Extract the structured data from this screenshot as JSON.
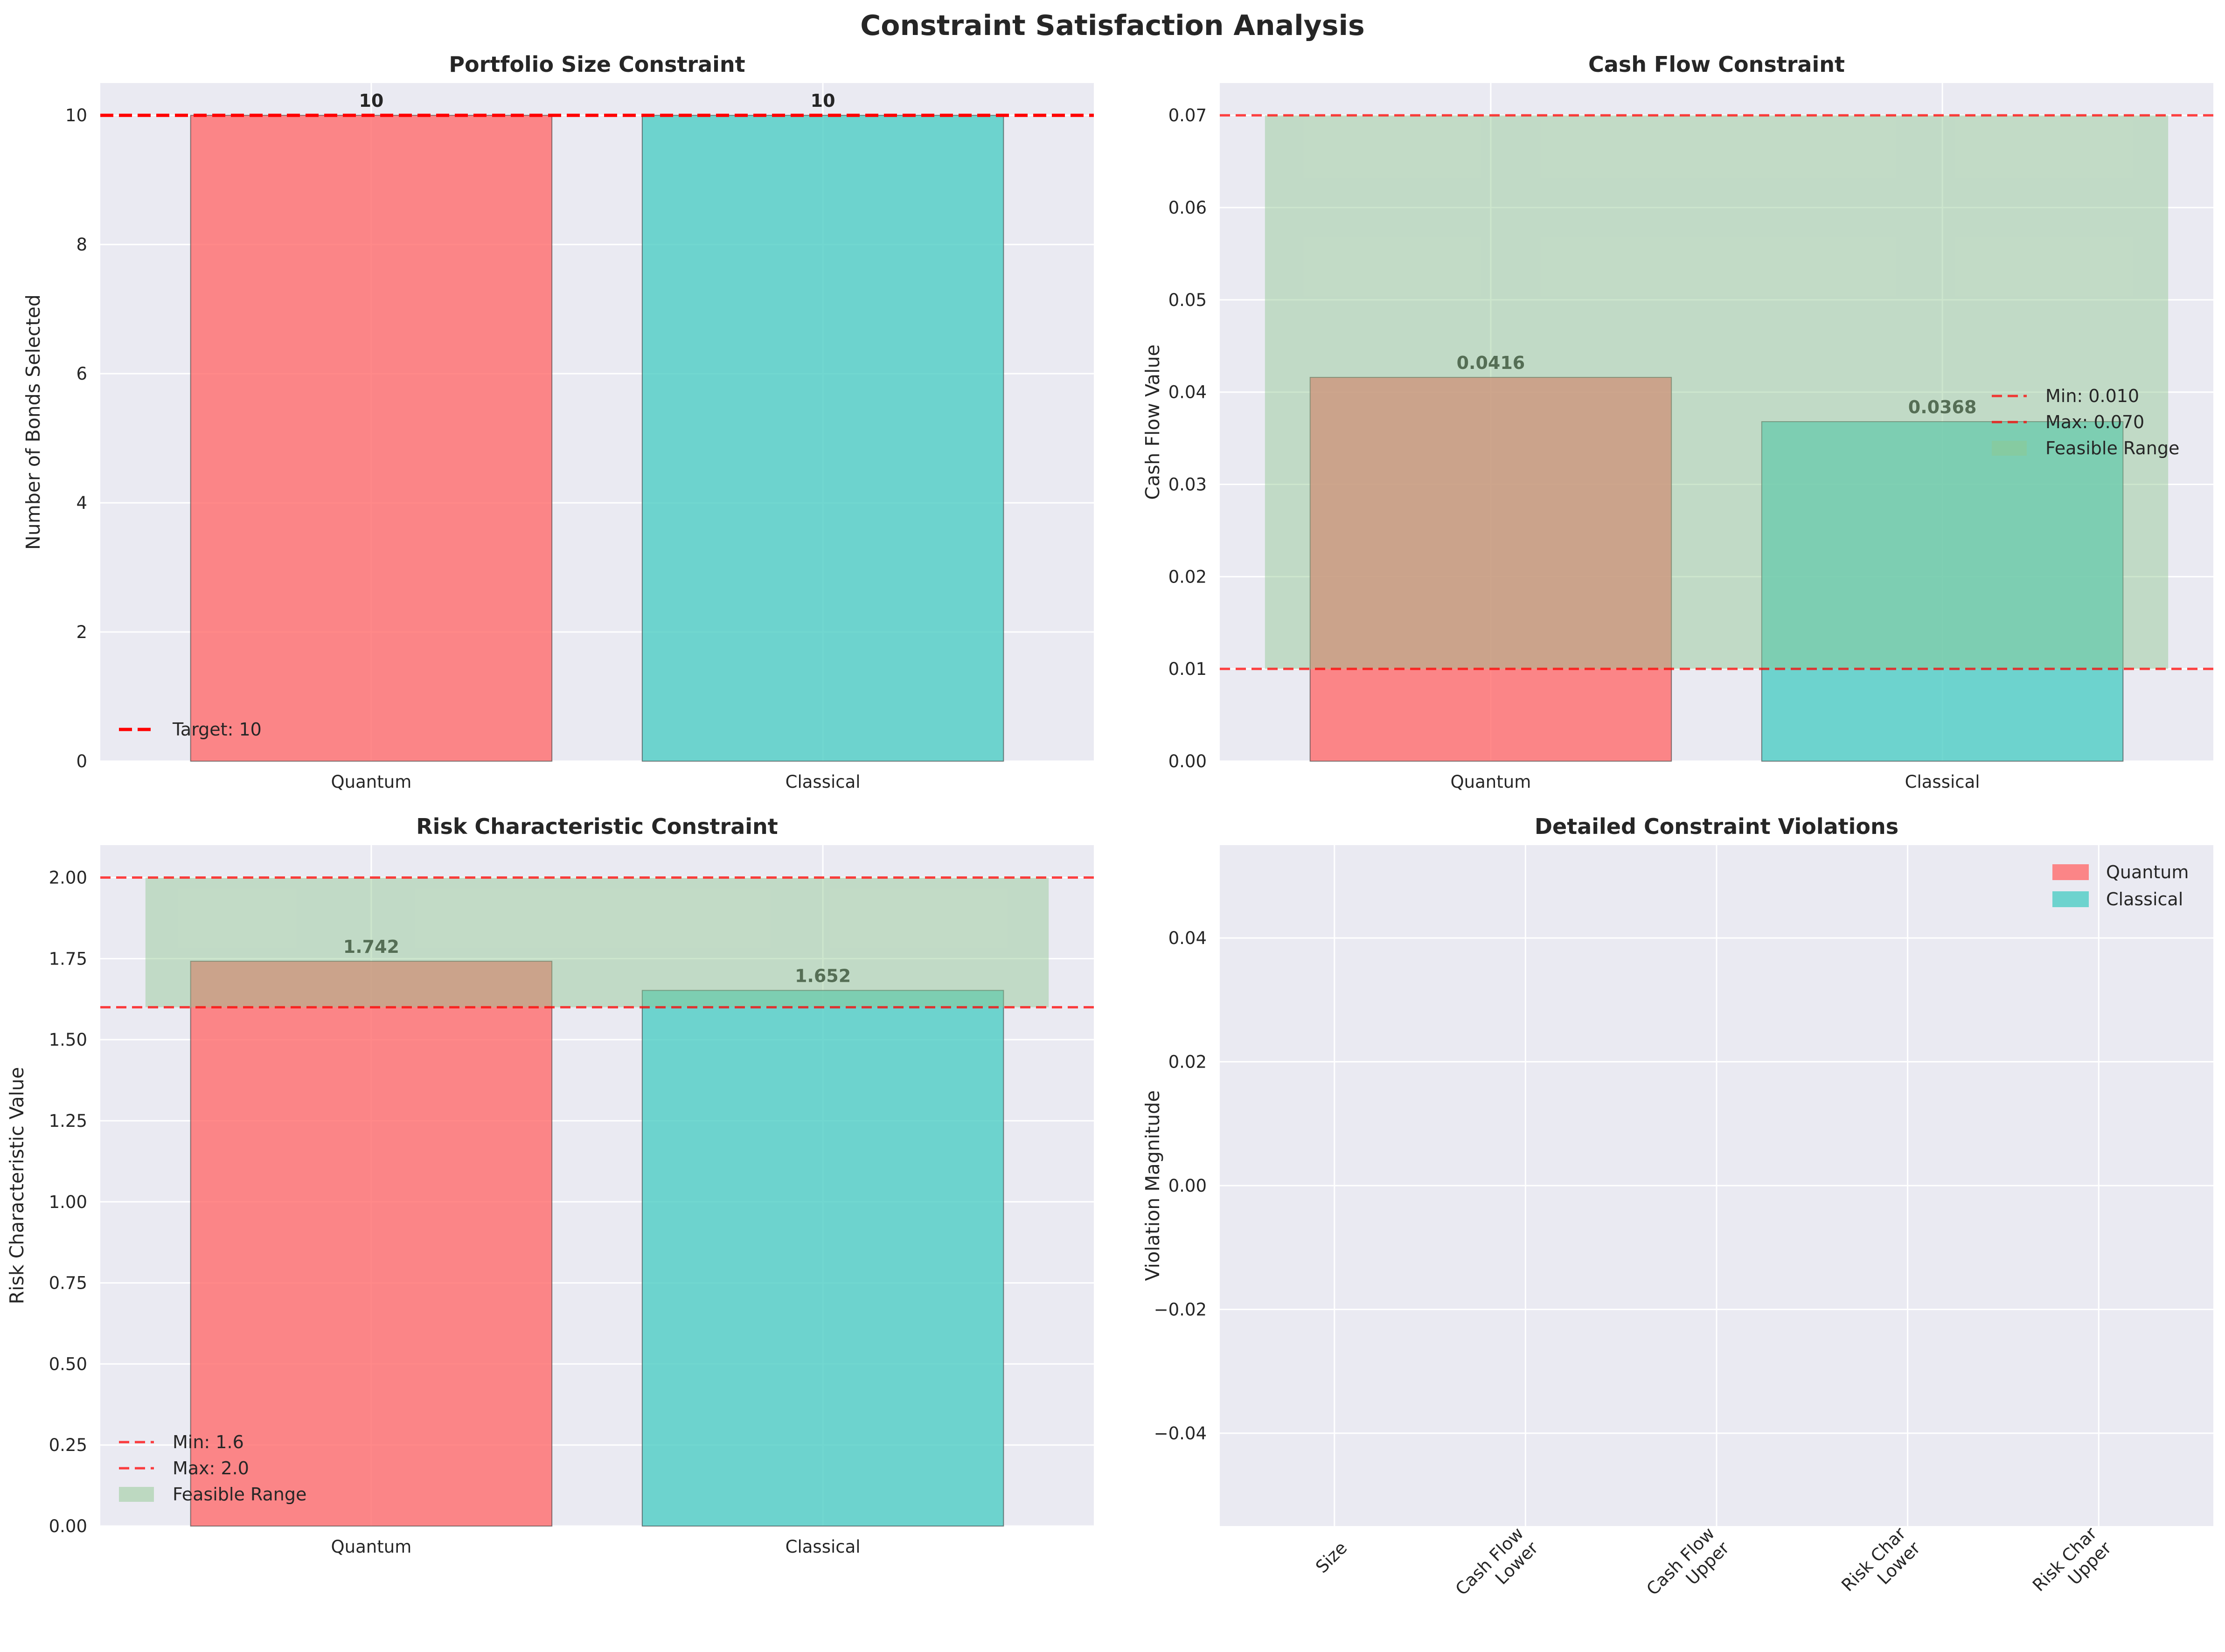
{
  "figure": {
    "title": "Constraint Satisfaction Analysis",
    "colors": {
      "quantum": "#ff6b6b",
      "classical": "#4ecdc4",
      "panel_bg": "#eaeaf2",
      "grid": "#ffffff",
      "limit_line": "#ff0000",
      "feasible": "#90c890"
    }
  },
  "chart_data": [
    {
      "id": "size",
      "type": "bar",
      "title": "Portfolio Size Constraint",
      "xlabel": "",
      "ylabel": "Number of Bonds Selected",
      "categories": [
        "Quantum",
        "Classical"
      ],
      "values": [
        10,
        10
      ],
      "value_labels": [
        "10",
        "10"
      ],
      "ylim": [
        0,
        10.5
      ],
      "yticks": [
        0,
        2,
        4,
        6,
        8,
        10
      ],
      "ytick_labels": [
        "0",
        "2",
        "4",
        "6",
        "8",
        "10"
      ],
      "reference_lines": [
        {
          "value": 10,
          "label": "Target: 10",
          "style": "dashed-bold"
        }
      ],
      "feasible_range": null,
      "legend_position": "lower left",
      "grid": true
    },
    {
      "id": "cashflow",
      "type": "bar",
      "title": "Cash Flow Constraint",
      "xlabel": "",
      "ylabel": "Cash Flow Value",
      "categories": [
        "Quantum",
        "Classical"
      ],
      "values": [
        0.0416,
        0.0368
      ],
      "value_labels": [
        "0.0416",
        "0.0368"
      ],
      "ylim": [
        0,
        0.0735
      ],
      "yticks": [
        0,
        0.01,
        0.02,
        0.03,
        0.04,
        0.05,
        0.06,
        0.07
      ],
      "ytick_labels": [
        "0.00",
        "0.01",
        "0.02",
        "0.03",
        "0.04",
        "0.05",
        "0.06",
        "0.07"
      ],
      "reference_lines": [
        {
          "value": 0.01,
          "label": "Min: 0.010",
          "style": "dashed"
        },
        {
          "value": 0.07,
          "label": "Max: 0.070",
          "style": "dashed"
        }
      ],
      "feasible_range": {
        "min": 0.01,
        "max": 0.07,
        "label": "Feasible Range"
      },
      "legend_position": "center right",
      "grid": true
    },
    {
      "id": "risk",
      "type": "bar",
      "title": "Risk Characteristic Constraint",
      "xlabel": "",
      "ylabel": "Risk Characteristic Value",
      "categories": [
        "Quantum",
        "Classical"
      ],
      "values": [
        1.742,
        1.652
      ],
      "value_labels": [
        "1.742",
        "1.652"
      ],
      "ylim": [
        0,
        2.1
      ],
      "yticks": [
        0,
        0.25,
        0.5,
        0.75,
        1.0,
        1.25,
        1.5,
        1.75,
        2.0
      ],
      "ytick_labels": [
        "0.00",
        "0.25",
        "0.50",
        "0.75",
        "1.00",
        "1.25",
        "1.50",
        "1.75",
        "2.00"
      ],
      "reference_lines": [
        {
          "value": 1.6,
          "label": "Min: 1.6",
          "style": "dashed"
        },
        {
          "value": 2.0,
          "label": "Max: 2.0",
          "style": "dashed"
        }
      ],
      "feasible_range": {
        "min": 1.6,
        "max": 2.0,
        "label": "Feasible Range"
      },
      "legend_position": "lower left",
      "grid": true
    },
    {
      "id": "violations",
      "type": "bar",
      "title": "Detailed Constraint Violations",
      "xlabel": "",
      "ylabel": "Violation Magnitude",
      "categories": [
        [
          "Size"
        ],
        [
          "Cash Flow",
          "Lower"
        ],
        [
          "Cash Flow",
          "Upper"
        ],
        [
          "Risk Char",
          "Lower"
        ],
        [
          "Risk Char",
          "Upper"
        ]
      ],
      "series": [
        {
          "name": "Quantum",
          "values": [
            0,
            0,
            0,
            0,
            0
          ]
        },
        {
          "name": "Classical",
          "values": [
            0,
            0,
            0,
            0,
            0
          ]
        }
      ],
      "ylim": [
        -0.055,
        0.055
      ],
      "yticks": [
        -0.04,
        -0.02,
        0,
        0.02,
        0.04
      ],
      "ytick_labels": [
        "−0.04",
        "−0.02",
        "0.00",
        "0.02",
        "0.04"
      ],
      "legend_position": "upper right",
      "grid": true
    }
  ]
}
